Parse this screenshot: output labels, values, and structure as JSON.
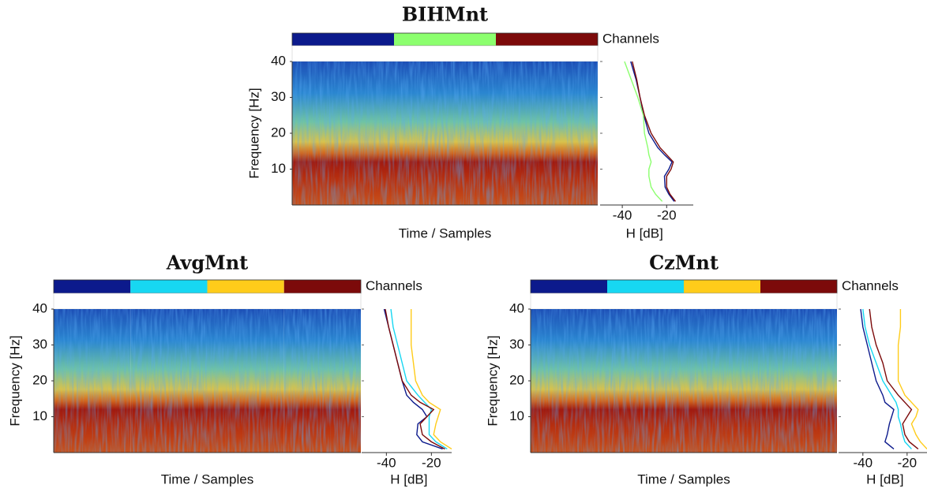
{
  "chart_data": [
    {
      "type": "spectrogram",
      "title": "BIHMnt",
      "legend_label": "Channels",
      "ylabel": "Frequency [Hz]",
      "xlabel": "Time / Samples",
      "ylim": [
        0,
        40
      ],
      "yticks": [
        10,
        20,
        30,
        40
      ],
      "spectrum": {
        "type": "line",
        "xlabel": "H [dB]",
        "xlim": [
          -50,
          -8
        ],
        "xticks": [
          -40,
          -20
        ],
        "y": [
          1,
          3,
          5,
          8,
          10,
          12,
          14,
          16,
          20,
          25,
          30,
          35,
          40
        ],
        "series": [
          {
            "color": "#0c1a8c",
            "values": [
              -16.6,
              -19,
              -20.7,
              -21,
              -19,
              -17.6,
              -21,
              -24,
              -28,
              -30.3,
              -32,
              -33.8,
              -36.2
            ]
          },
          {
            "color": "#8cff6e",
            "values": [
              -22,
              -25,
              -27,
              -28,
              -28,
              -27,
              -28,
              -28.5,
              -30,
              -30.5,
              -33,
              -36,
              -39
            ]
          },
          {
            "color": "#7c0a0a",
            "values": [
              -16,
              -18.5,
              -20,
              -20,
              -18,
              -17,
              -20,
              -23,
              -27,
              -30,
              -32,
              -33.5,
              -35.5
            ]
          }
        ]
      }
    },
    {
      "type": "spectrogram",
      "title": "AvgMnt",
      "legend_label": "Channels",
      "ylabel": "Frequency [Hz]",
      "xlabel": "Time / Samples",
      "ylim": [
        0,
        40
      ],
      "yticks": [
        10,
        20,
        30,
        40
      ],
      "spectrum": {
        "type": "line",
        "xlabel": "H [dB]",
        "xlim": [
          -51,
          -11
        ],
        "xticks": [
          -40,
          -20
        ],
        "y": [
          1,
          3,
          5,
          8,
          10,
          12,
          14,
          16,
          20,
          25,
          30,
          35,
          40
        ],
        "series": [
          {
            "color": "#0c1a8c",
            "values": [
              -15,
              -24,
              -26.5,
              -26,
              -22,
              -24,
              -28,
              -31,
              -33,
              -35,
              -37,
              -39,
              -41
            ]
          },
          {
            "color": "#17d7f2",
            "values": [
              -13,
              -18,
              -21,
              -21,
              -21,
              -20,
              -23,
              -26,
              -31,
              -33,
              -35,
              -37,
              -38
            ]
          },
          {
            "color": "#ffcc1a",
            "values": [
              -11,
              -16,
              -19,
              -18,
              -17,
              -16,
              -21,
              -24,
              -27,
              -28,
              -29,
              -29,
              -29
            ]
          },
          {
            "color": "#7c0a0a",
            "values": [
              -14,
              -20,
              -24,
              -25,
              -22,
              -19,
              -25,
              -29,
              -33,
              -35,
              -37,
              -39,
              -40.5
            ]
          }
        ]
      }
    },
    {
      "type": "spectrogram",
      "title": "CzMnt",
      "legend_label": "Channels",
      "ylabel": "Frequency [Hz]",
      "xlabel": "Time / Samples",
      "ylim": [
        0,
        40
      ],
      "yticks": [
        10,
        20,
        30,
        40
      ],
      "spectrum": {
        "type": "line",
        "xlabel": "H [dB]",
        "xlim": [
          -51,
          -11
        ],
        "xticks": [
          -40,
          -20
        ],
        "y": [
          1,
          3,
          5,
          8,
          10,
          12,
          14,
          16,
          20,
          25,
          30,
          35,
          40
        ],
        "series": [
          {
            "color": "#0c1a8c",
            "values": [
              -26,
              -30,
              -29,
              -28,
              -27,
              -26,
              -30,
              -31,
              -34,
              -36,
              -38,
              -40,
              -41
            ]
          },
          {
            "color": "#17d7f2",
            "values": [
              -18,
              -21,
              -22,
              -23,
              -24,
              -24,
              -25,
              -27,
              -31,
              -34,
              -37,
              -39,
              -40
            ]
          },
          {
            "color": "#ffcc1a",
            "values": [
              -11,
              -14,
              -16,
              -18,
              -16,
              -15,
              -18,
              -21,
              -24,
              -24,
              -24,
              -23,
              -23
            ]
          },
          {
            "color": "#7c0a0a",
            "values": [
              -15,
              -19,
              -21,
              -22,
              -20,
              -18,
              -21,
              -24,
              -29,
              -31,
              -34,
              -36,
              -37
            ]
          }
        ]
      }
    }
  ]
}
